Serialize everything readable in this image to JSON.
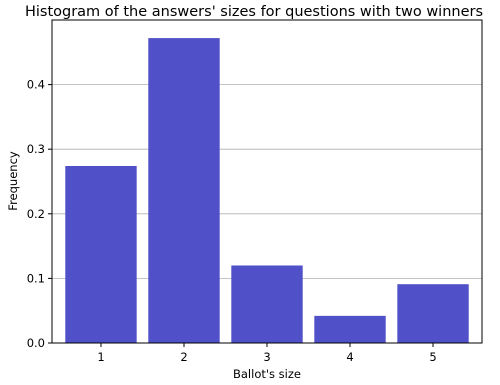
{
  "chart_data": {
    "type": "bar",
    "title": "Histogram of the answers' sizes for questions with two winners",
    "xlabel": "Ballot's size",
    "ylabel": "Frequency",
    "categories": [
      "1",
      "2",
      "3",
      "4",
      "5"
    ],
    "values": [
      0.274,
      0.472,
      0.12,
      0.042,
      0.091
    ],
    "ylim": [
      0,
      0.5
    ],
    "yticks": [
      "0.0",
      "0.1",
      "0.2",
      "0.3",
      "0.4"
    ],
    "grid": "horizontal",
    "bar_color": "#5050c8"
  }
}
